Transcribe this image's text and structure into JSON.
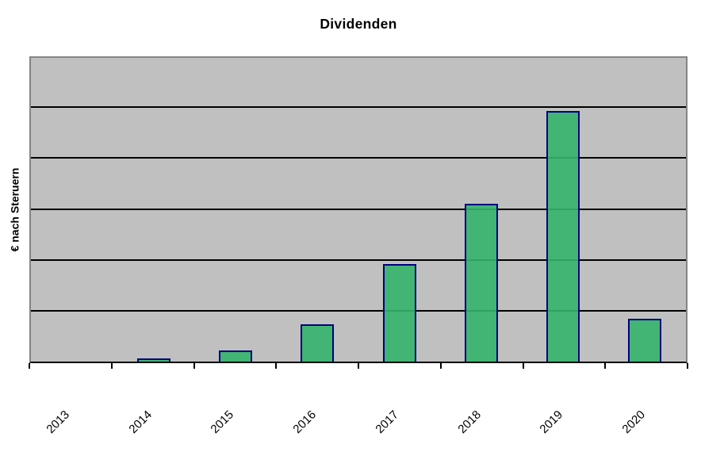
{
  "chart_data": {
    "type": "bar",
    "title": "Dividenden",
    "ylabel": "€ nach Steruern",
    "xlabel": "",
    "categories": [
      "2013",
      "2014",
      "2015",
      "2016",
      "2017",
      "2018",
      "2019",
      "2020"
    ],
    "values": [
      0,
      0.06,
      0.22,
      0.74,
      1.91,
      3.1,
      4.93,
      0.84
    ],
    "value_units": "gridline units — y axis shows no numeric tick labels; one unit = one horizontal gridline interval",
    "ylim": [
      0,
      6
    ],
    "gridline_step": 1,
    "grid": "horizontal black gridlines on gray plot background",
    "legend": "none",
    "x_tick_label_rotation_deg": 45,
    "colors": {
      "bar_fill": "rgba(52,178,106,0.9)",
      "bar_fill_hex_apparent": "#45b575",
      "bar_border": "#000080",
      "plot_background": "#c0c0c0",
      "plot_border": "#848484",
      "gridline": "#000000",
      "axis": "#000000",
      "text": "#000000",
      "page_background": "#ffffff"
    }
  }
}
